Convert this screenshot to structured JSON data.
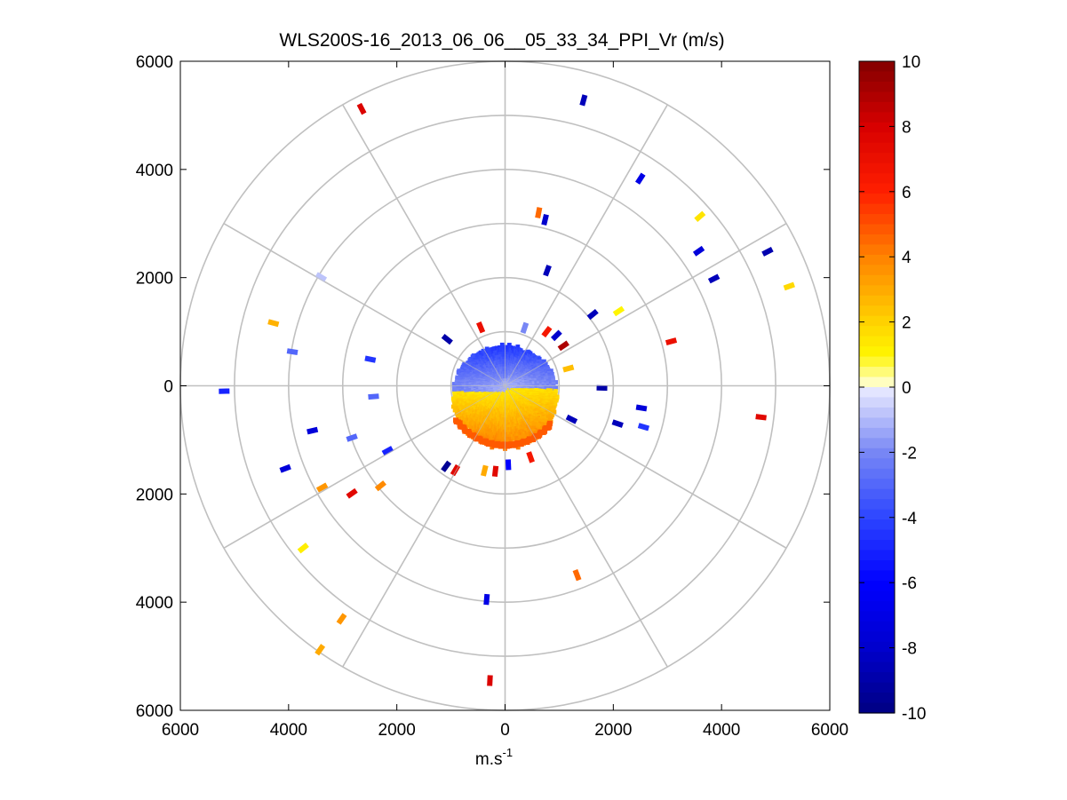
{
  "chart_data": {
    "type": "scatter",
    "subtype": "polar PPI plot (plan position indicator) of radial velocity",
    "title": "WLS200S-16_2013_06_06__05_33_34_PPI_Vr (m/s)",
    "xlabel_base": "m.s",
    "xlabel_exp": "-1",
    "xlabel": "m.s-1",
    "ylabel": "",
    "xlim": [
      -6000,
      6000
    ],
    "ylim": [
      -6000,
      6000
    ],
    "x_ticks": [
      -6000,
      -4000,
      -2000,
      0,
      2000,
      4000,
      6000
    ],
    "y_ticks": [
      6000,
      4000,
      2000,
      0,
      -2000,
      -4000,
      -6000
    ],
    "x_tick_labels": [
      "6000",
      "4000",
      "2000",
      "0",
      "2000",
      "4000",
      "6000"
    ],
    "y_tick_labels": [
      "6000",
      "4000",
      "2000",
      "0",
      "2000",
      "4000",
      "6000"
    ],
    "polar_grid": {
      "rings": [
        1000,
        2000,
        3000,
        4000,
        5000,
        6000
      ],
      "spokes_deg": [
        0,
        30,
        60,
        90,
        120,
        150,
        180,
        210,
        240,
        270,
        300,
        330
      ],
      "color": "#c0c0c0"
    },
    "colorbar": {
      "label": "",
      "min": -10,
      "max": 10,
      "ticks": [
        10,
        8,
        6,
        4,
        2,
        0,
        -2,
        -4,
        -6,
        -8,
        -10
      ],
      "tick_labels": [
        "10",
        "8",
        "6",
        "4",
        "2",
        "0",
        "-2",
        "-4",
        "-6",
        "-8",
        "-10"
      ],
      "levels": 64,
      "colormap": "blue-white-yellow-red (diverging)"
    },
    "central_echo": {
      "description": "dense scan disc around the lidar; negative velocities (blue) to the north, positive (yellow to orange) to the south",
      "radius_m": 1150,
      "center": [
        0,
        0
      ]
    },
    "points": [
      {
        "x": -2650,
        "y": 5120,
        "v": 7.8
      },
      {
        "x": 1450,
        "y": 5280,
        "v": -8.5
      },
      {
        "x": 2500,
        "y": 3830,
        "v": -7.0
      },
      {
        "x": 3600,
        "y": 3130,
        "v": 1.5
      },
      {
        "x": 3580,
        "y": 2490,
        "v": -7.5
      },
      {
        "x": 4850,
        "y": 2480,
        "v": -8.8
      },
      {
        "x": 3860,
        "y": 1980,
        "v": -8.5
      },
      {
        "x": 5250,
        "y": 1840,
        "v": 1.8
      },
      {
        "x": 620,
        "y": 3200,
        "v": 4.5
      },
      {
        "x": 740,
        "y": 3070,
        "v": -8.0
      },
      {
        "x": 780,
        "y": 2130,
        "v": -8.5
      },
      {
        "x": 1620,
        "y": 1320,
        "v": -8.5
      },
      {
        "x": 2100,
        "y": 1380,
        "v": 1.0
      },
      {
        "x": 3070,
        "y": 820,
        "v": 7.0
      },
      {
        "x": -3400,
        "y": 2010,
        "v": -0.8
      },
      {
        "x": -4280,
        "y": 1160,
        "v": 2.8
      },
      {
        "x": -3930,
        "y": 630,
        "v": -3.0
      },
      {
        "x": -2490,
        "y": 490,
        "v": -4.5
      },
      {
        "x": -5190,
        "y": -100,
        "v": -5.0
      },
      {
        "x": -2430,
        "y": -200,
        "v": -3.0
      },
      {
        "x": -3560,
        "y": -830,
        "v": -7.5
      },
      {
        "x": -2830,
        "y": -960,
        "v": -3.0
      },
      {
        "x": -2170,
        "y": -1200,
        "v": -5.0
      },
      {
        "x": -4060,
        "y": -1530,
        "v": -7.5
      },
      {
        "x": -3380,
        "y": -1880,
        "v": 3.5
      },
      {
        "x": -2830,
        "y": -1990,
        "v": 7.5
      },
      {
        "x": -2300,
        "y": -1850,
        "v": 3.8
      },
      {
        "x": -3730,
        "y": -3000,
        "v": 1.2
      },
      {
        "x": -3020,
        "y": -4310,
        "v": 3.5
      },
      {
        "x": -3420,
        "y": -4880,
        "v": 3.0
      },
      {
        "x": -340,
        "y": -3950,
        "v": -7.0
      },
      {
        "x": -280,
        "y": -5450,
        "v": 7.8
      },
      {
        "x": 1330,
        "y": -3500,
        "v": 4.5
      },
      {
        "x": 2520,
        "y": -410,
        "v": -7.5
      },
      {
        "x": 2560,
        "y": -760,
        "v": -4.5
      },
      {
        "x": 2080,
        "y": -700,
        "v": -8.5
      },
      {
        "x": 4730,
        "y": -580,
        "v": 7.5
      },
      {
        "x": 1790,
        "y": -40,
        "v": -9.0
      },
      {
        "x": 1230,
        "y": -620,
        "v": -8.5
      },
      {
        "x": 1080,
        "y": 740,
        "v": 9.0
      },
      {
        "x": 950,
        "y": 930,
        "v": -8.0
      },
      {
        "x": -1070,
        "y": 860,
        "v": -9.0
      },
      {
        "x": 360,
        "y": 1070,
        "v": -2.0
      },
      {
        "x": -450,
        "y": 1080,
        "v": 7.0
      },
      {
        "x": 770,
        "y": 1000,
        "v": 6.5
      },
      {
        "x": 1170,
        "y": 320,
        "v": 2.5
      },
      {
        "x": -1090,
        "y": -1490,
        "v": -9.5
      },
      {
        "x": -920,
        "y": -1560,
        "v": 7.5
      },
      {
        "x": -380,
        "y": -1570,
        "v": 3.0
      },
      {
        "x": -180,
        "y": -1580,
        "v": 7.5
      },
      {
        "x": 60,
        "y": -1460,
        "v": -6.0
      },
      {
        "x": 470,
        "y": -1320,
        "v": 6.5
      }
    ]
  }
}
